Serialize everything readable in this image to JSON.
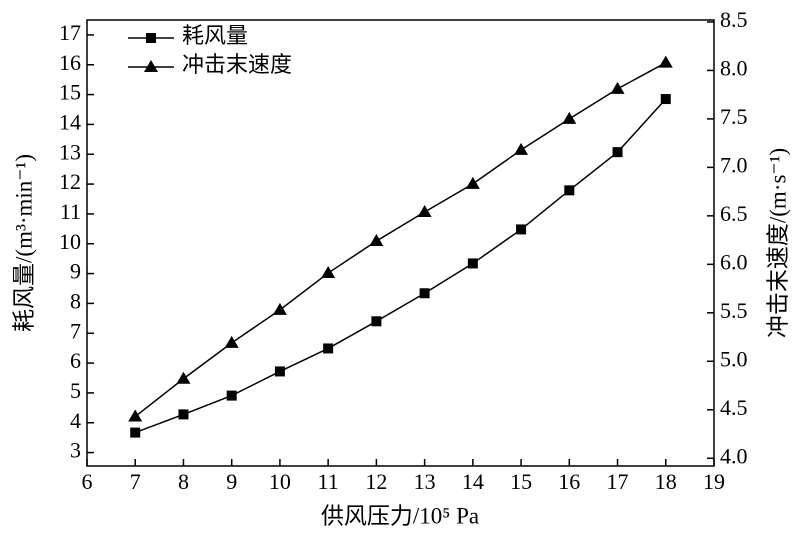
{
  "chart_data": {
    "type": "line",
    "x_label": "供风压力/10⁵ Pa",
    "y_label": "耗风量/(m³·min⁻¹)",
    "y2_label": "冲击末速度/(m·s⁻¹)",
    "x": [
      7,
      8,
      9,
      10,
      11,
      12,
      13,
      14,
      15,
      16,
      17,
      18
    ],
    "xlim": [
      6,
      19
    ],
    "xticks": [
      6,
      7,
      8,
      9,
      10,
      11,
      12,
      13,
      14,
      15,
      16,
      17,
      18,
      19
    ],
    "ylim": [
      2.55,
      17.5
    ],
    "yticks": [
      3,
      4,
      5,
      6,
      7,
      8,
      9,
      10,
      11,
      12,
      13,
      14,
      15,
      16,
      17
    ],
    "y2lim": [
      3.92,
      8.52
    ],
    "y2ticks": [
      {
        "value": 4,
        "label": "4.0"
      },
      4.5,
      {
        "value": 5,
        "label": "5.0"
      },
      5.5,
      {
        "value": 6,
        "label": "6.0"
      },
      6.5,
      {
        "value": 7,
        "label": "7.0"
      },
      7.5,
      {
        "value": 8,
        "label": "8.0"
      },
      8.5
    ],
    "legend": "upper left",
    "series": [
      {
        "name": "耗风量",
        "color": "#000000",
        "marker": "square",
        "values": [
          3.67,
          4.28,
          4.91,
          5.72,
          6.49,
          7.4,
          8.34,
          9.34,
          10.48,
          11.79,
          13.07,
          14.85
        ]
      },
      {
        "name": "冲击末速度",
        "color": "#000000",
        "marker": "triangle",
        "axis": "y2",
        "values": [
          4.43,
          4.82,
          5.19,
          5.53,
          5.91,
          6.24,
          6.54,
          6.83,
          7.18,
          7.5,
          7.81,
          8.08
        ]
      }
    ]
  }
}
